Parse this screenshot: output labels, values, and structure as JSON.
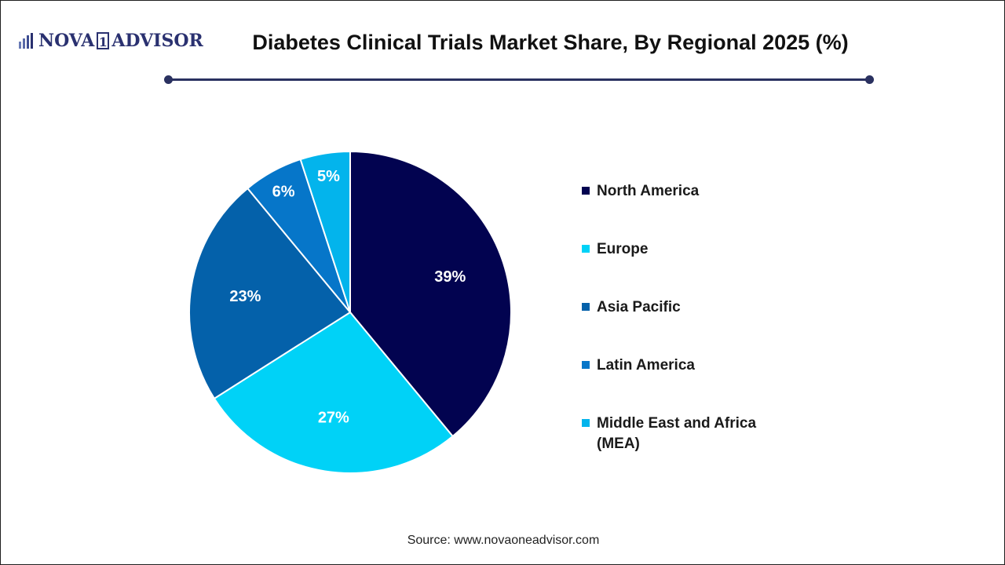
{
  "header": {
    "logo_text_left": "NOVA",
    "logo_text_mid": "1",
    "logo_text_right": "ADVISOR",
    "title": "Diabetes Clinical Trials Market Share, By Regional 2025 (%)"
  },
  "footer": {
    "source": "Source: www.novaoneadvisor.com"
  },
  "colors": {
    "brand": "#2a3170",
    "rule": "#2a3160"
  },
  "chart_data": {
    "type": "pie",
    "title": "Diabetes Clinical Trials Market Share, By Regional 2025 (%)",
    "legend_position": "right",
    "slices": [
      {
        "label": "North America",
        "value": 39,
        "display": "39%",
        "color": "#020350"
      },
      {
        "label": "Europe",
        "value": 27,
        "display": "27%",
        "color": "#00d2f7"
      },
      {
        "label": "Asia Pacific",
        "value": 23,
        "display": "23%",
        "color": "#0461aa"
      },
      {
        "label": "Latin America",
        "value": 6,
        "display": "6%",
        "color": "#0676c9"
      },
      {
        "label": "Middle East and Africa (MEA)",
        "value": 5,
        "display": "5%",
        "color": "#03b4ec"
      }
    ]
  }
}
